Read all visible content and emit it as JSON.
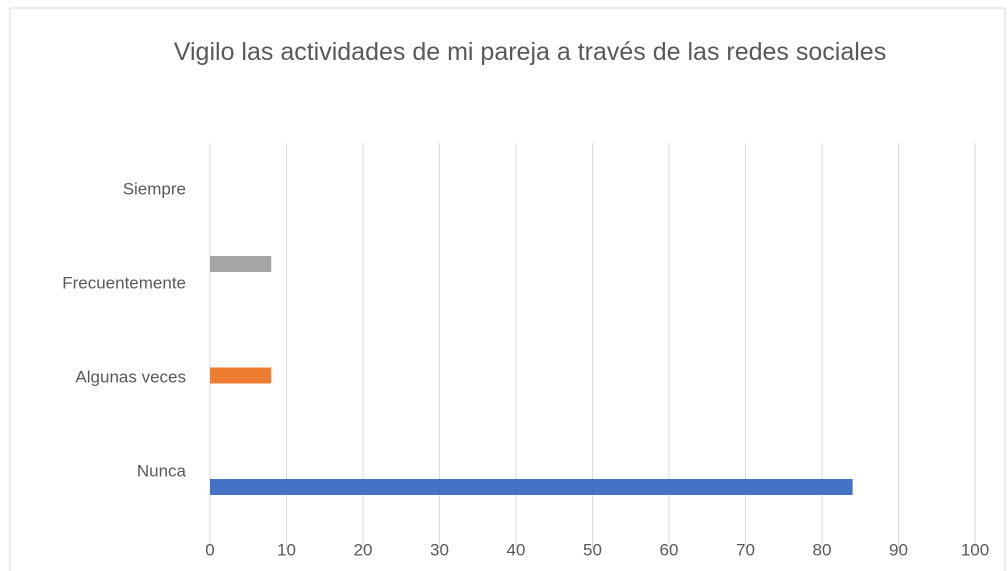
{
  "chart_data": {
    "type": "hbar",
    "title": "Vigilo las actividades de mi pareja a través de las redes sociales",
    "categories": [
      "Nunca",
      "Algunas veces",
      "Frecuentemente",
      "Siempre"
    ],
    "values": [
      84,
      8,
      8,
      0
    ],
    "colors": [
      "#4472c4",
      "#ed7d31",
      "#a5a5a5",
      "#ffc000"
    ],
    "xlim": [
      0,
      100
    ],
    "xticks": [
      0,
      10,
      20,
      30,
      40,
      50,
      60,
      70,
      80,
      90,
      100
    ],
    "grid": true
  }
}
